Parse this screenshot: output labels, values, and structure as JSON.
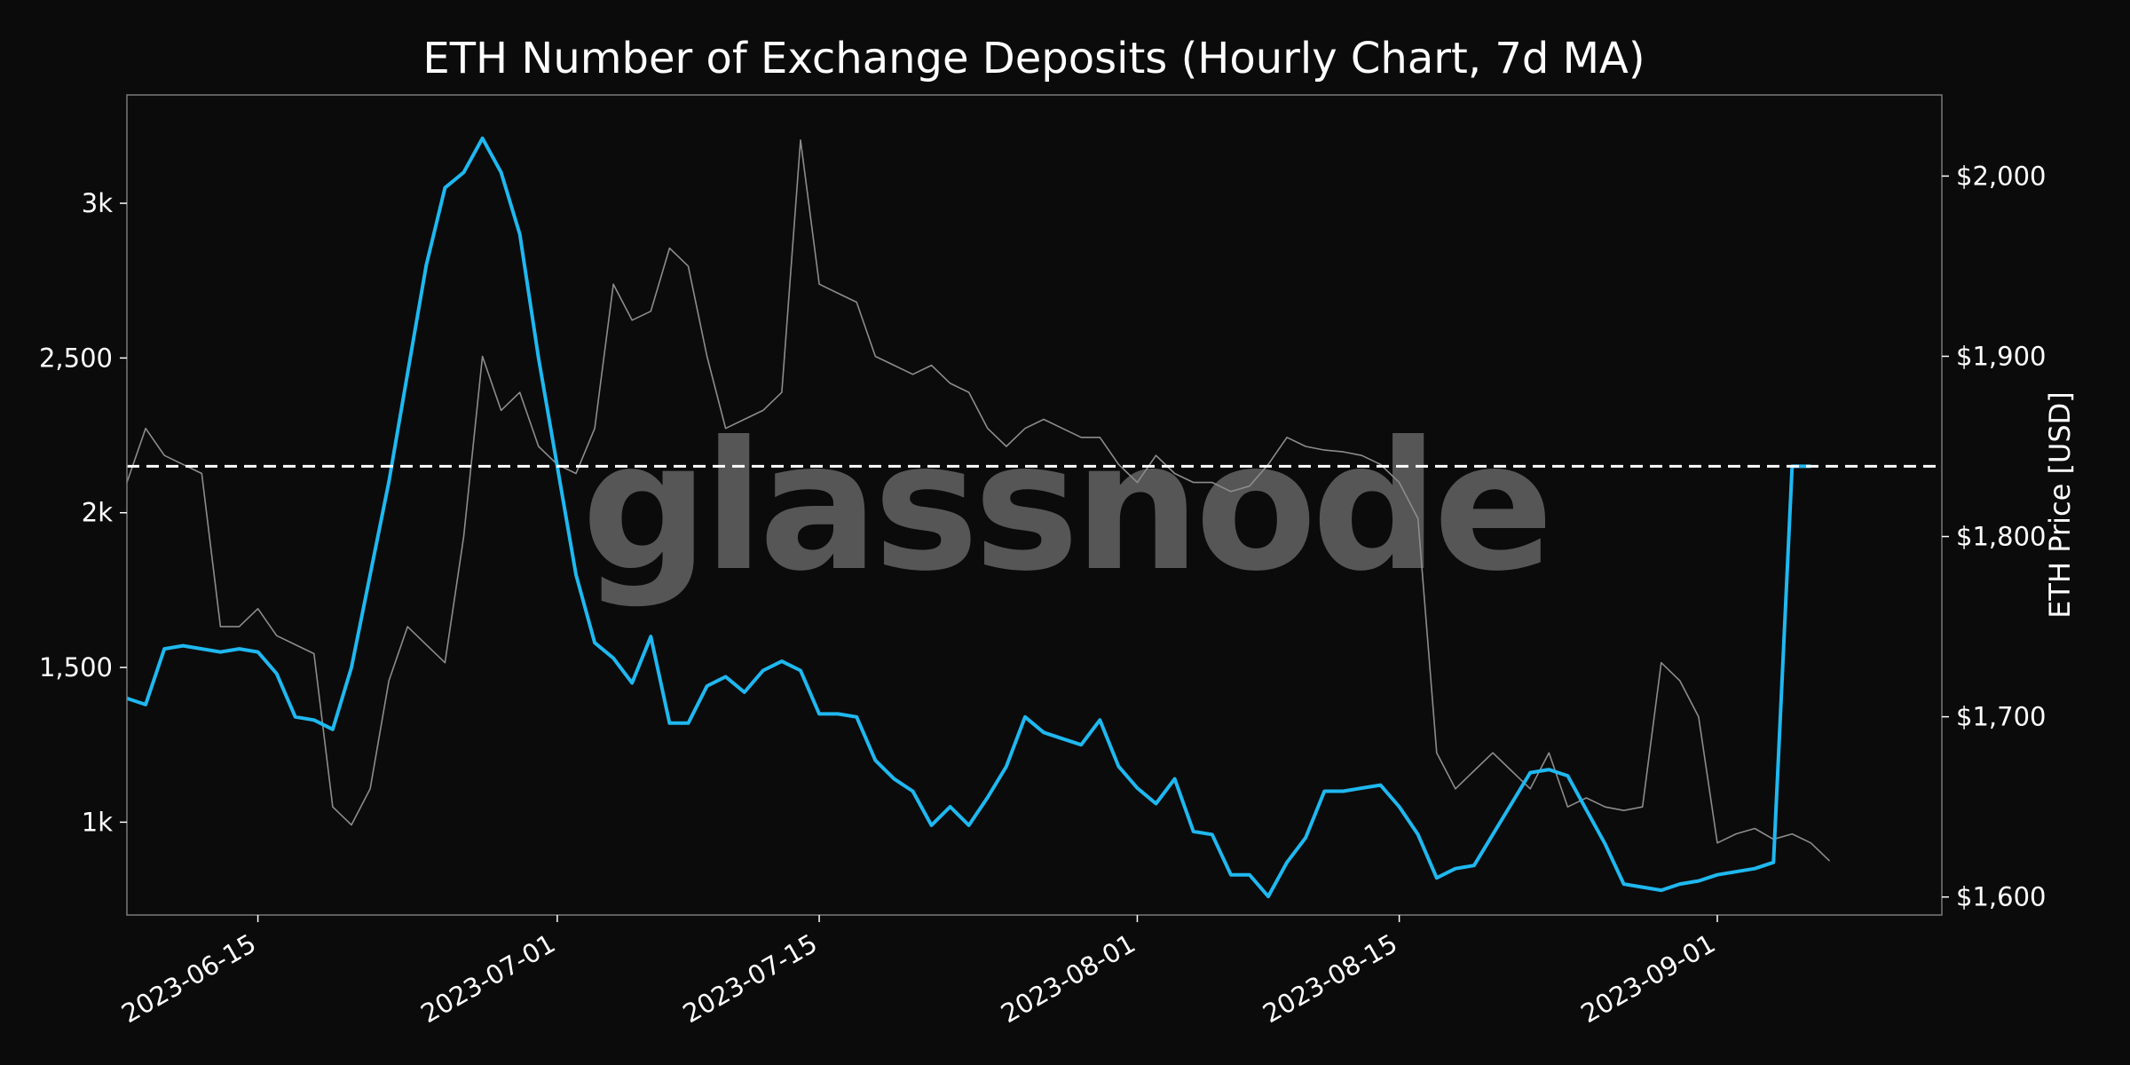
{
  "chart_data": {
    "type": "line",
    "title": "ETH Number of Exchange Deposits (Hourly Chart, 7d MA)",
    "watermark": "glassnode",
    "xlabel": "",
    "ylabel_left": "",
    "ylabel_right": "ETH Price [USD]",
    "x_ticks": [
      "2023-06-15",
      "2023-07-01",
      "2023-07-15",
      "2023-08-01",
      "2023-08-15",
      "2023-09-01"
    ],
    "y_left_ticks": [
      {
        "value": 1000,
        "label": "1k"
      },
      {
        "value": 1500,
        "label": "1,500"
      },
      {
        "value": 2000,
        "label": "2k"
      },
      {
        "value": 2500,
        "label": "2,500"
      },
      {
        "value": 3000,
        "label": "3k"
      }
    ],
    "y_right_ticks": [
      {
        "value": 1600,
        "label": "$1,600"
      },
      {
        "value": 1700,
        "label": "$1,700"
      },
      {
        "value": 1800,
        "label": "$1,800"
      },
      {
        "value": 1900,
        "label": "$1,900"
      },
      {
        "value": 2000,
        "label": "$2,000"
      }
    ],
    "xlim": [
      "2023-06-08",
      "2023-09-13"
    ],
    "ylim_left": [
      700,
      3350
    ],
    "ylim_right": [
      1590,
      2045
    ],
    "grid": false,
    "reference_line": {
      "axis": "left",
      "value": 2150,
      "style": "dashed",
      "color": "#ffffff"
    },
    "colors": {
      "background": "#0b0b0b",
      "deposits": "#1fb8f0",
      "price": "#8c8c8c",
      "frame": "#7a7a7a"
    },
    "series": [
      {
        "axis": "left",
        "color": "#1fb8f0",
        "points": [
          [
            "2023-06-08",
            1400
          ],
          [
            "2023-06-09",
            1380
          ],
          [
            "2023-06-10",
            1560
          ],
          [
            "2023-06-11",
            1570
          ],
          [
            "2023-06-12",
            1560
          ],
          [
            "2023-06-13",
            1550
          ],
          [
            "2023-06-14",
            1560
          ],
          [
            "2023-06-15",
            1550
          ],
          [
            "2023-06-16",
            1480
          ],
          [
            "2023-06-17",
            1340
          ],
          [
            "2023-06-18",
            1330
          ],
          [
            "2023-06-19",
            1300
          ],
          [
            "2023-06-20",
            1500
          ],
          [
            "2023-06-21",
            1800
          ],
          [
            "2023-06-22",
            2100
          ],
          [
            "2023-06-23",
            2450
          ],
          [
            "2023-06-24",
            2800
          ],
          [
            "2023-06-25",
            3050
          ],
          [
            "2023-06-26",
            3100
          ],
          [
            "2023-06-27",
            3210
          ],
          [
            "2023-06-28",
            3100
          ],
          [
            "2023-06-29",
            2900
          ],
          [
            "2023-06-30",
            2500
          ],
          [
            "2023-07-01",
            2150
          ],
          [
            "2023-07-02",
            1800
          ],
          [
            "2023-07-03",
            1580
          ],
          [
            "2023-07-04",
            1530
          ],
          [
            "2023-07-05",
            1450
          ],
          [
            "2023-07-06",
            1600
          ],
          [
            "2023-07-07",
            1320
          ],
          [
            "2023-07-08",
            1320
          ],
          [
            "2023-07-09",
            1440
          ],
          [
            "2023-07-10",
            1470
          ],
          [
            "2023-07-11",
            1420
          ],
          [
            "2023-07-12",
            1490
          ],
          [
            "2023-07-13",
            1520
          ],
          [
            "2023-07-14",
            1490
          ],
          [
            "2023-07-15",
            1350
          ],
          [
            "2023-07-16",
            1350
          ],
          [
            "2023-07-17",
            1340
          ],
          [
            "2023-07-18",
            1200
          ],
          [
            "2023-07-19",
            1140
          ],
          [
            "2023-07-20",
            1100
          ],
          [
            "2023-07-21",
            990
          ],
          [
            "2023-07-22",
            1050
          ],
          [
            "2023-07-23",
            990
          ],
          [
            "2023-07-24",
            1080
          ],
          [
            "2023-07-25",
            1180
          ],
          [
            "2023-07-26",
            1340
          ],
          [
            "2023-07-27",
            1290
          ],
          [
            "2023-07-28",
            1270
          ],
          [
            "2023-07-29",
            1250
          ],
          [
            "2023-07-30",
            1330
          ],
          [
            "2023-07-31",
            1180
          ],
          [
            "2023-08-01",
            1110
          ],
          [
            "2023-08-02",
            1060
          ],
          [
            "2023-08-03",
            1140
          ],
          [
            "2023-08-04",
            970
          ],
          [
            "2023-08-05",
            960
          ],
          [
            "2023-08-06",
            830
          ],
          [
            "2023-08-07",
            830
          ],
          [
            "2023-08-08",
            760
          ],
          [
            "2023-08-09",
            870
          ],
          [
            "2023-08-10",
            950
          ],
          [
            "2023-08-11",
            1100
          ],
          [
            "2023-08-12",
            1100
          ],
          [
            "2023-08-13",
            1110
          ],
          [
            "2023-08-14",
            1120
          ],
          [
            "2023-08-15",
            1050
          ],
          [
            "2023-08-16",
            960
          ],
          [
            "2023-08-17",
            820
          ],
          [
            "2023-08-18",
            850
          ],
          [
            "2023-08-19",
            860
          ],
          [
            "2023-08-20",
            960
          ],
          [
            "2023-08-21",
            1060
          ],
          [
            "2023-08-22",
            1160
          ],
          [
            "2023-08-23",
            1170
          ],
          [
            "2023-08-24",
            1150
          ],
          [
            "2023-08-25",
            1040
          ],
          [
            "2023-08-26",
            930
          ],
          [
            "2023-08-27",
            800
          ],
          [
            "2023-08-28",
            790
          ],
          [
            "2023-08-29",
            780
          ],
          [
            "2023-08-30",
            800
          ],
          [
            "2023-08-31",
            810
          ],
          [
            "2023-09-01",
            830
          ],
          [
            "2023-09-02",
            840
          ],
          [
            "2023-09-03",
            850
          ],
          [
            "2023-09-04",
            870
          ],
          [
            "2023-09-05",
            2150
          ],
          [
            "2023-09-06",
            2150
          ]
        ]
      },
      {
        "axis": "right",
        "color": "#8c8c8c",
        "points": [
          [
            "2023-06-08",
            1830
          ],
          [
            "2023-06-09",
            1860
          ],
          [
            "2023-06-10",
            1845
          ],
          [
            "2023-06-11",
            1840
          ],
          [
            "2023-06-12",
            1835
          ],
          [
            "2023-06-13",
            1750
          ],
          [
            "2023-06-14",
            1750
          ],
          [
            "2023-06-15",
            1760
          ],
          [
            "2023-06-16",
            1745
          ],
          [
            "2023-06-17",
            1740
          ],
          [
            "2023-06-18",
            1735
          ],
          [
            "2023-06-19",
            1650
          ],
          [
            "2023-06-20",
            1640
          ],
          [
            "2023-06-21",
            1660
          ],
          [
            "2023-06-22",
            1720
          ],
          [
            "2023-06-23",
            1750
          ],
          [
            "2023-06-24",
            1740
          ],
          [
            "2023-06-25",
            1730
          ],
          [
            "2023-06-26",
            1800
          ],
          [
            "2023-06-27",
            1900
          ],
          [
            "2023-06-28",
            1870
          ],
          [
            "2023-06-29",
            1880
          ],
          [
            "2023-06-30",
            1850
          ],
          [
            "2023-07-01",
            1840
          ],
          [
            "2023-07-02",
            1835
          ],
          [
            "2023-07-03",
            1860
          ],
          [
            "2023-07-04",
            1940
          ],
          [
            "2023-07-05",
            1920
          ],
          [
            "2023-07-06",
            1925
          ],
          [
            "2023-07-07",
            1960
          ],
          [
            "2023-07-08",
            1950
          ],
          [
            "2023-07-09",
            1900
          ],
          [
            "2023-07-10",
            1860
          ],
          [
            "2023-07-11",
            1865
          ],
          [
            "2023-07-12",
            1870
          ],
          [
            "2023-07-13",
            1880
          ],
          [
            "2023-07-14",
            2020
          ],
          [
            "2023-07-15",
            1940
          ],
          [
            "2023-07-16",
            1935
          ],
          [
            "2023-07-17",
            1930
          ],
          [
            "2023-07-18",
            1900
          ],
          [
            "2023-07-19",
            1895
          ],
          [
            "2023-07-20",
            1890
          ],
          [
            "2023-07-21",
            1895
          ],
          [
            "2023-07-22",
            1885
          ],
          [
            "2023-07-23",
            1880
          ],
          [
            "2023-07-24",
            1860
          ],
          [
            "2023-07-25",
            1850
          ],
          [
            "2023-07-26",
            1860
          ],
          [
            "2023-07-27",
            1865
          ],
          [
            "2023-07-28",
            1860
          ],
          [
            "2023-07-29",
            1855
          ],
          [
            "2023-07-30",
            1855
          ],
          [
            "2023-07-31",
            1840
          ],
          [
            "2023-08-01",
            1830
          ],
          [
            "2023-08-02",
            1845
          ],
          [
            "2023-08-03",
            1835
          ],
          [
            "2023-08-04",
            1830
          ],
          [
            "2023-08-05",
            1830
          ],
          [
            "2023-08-06",
            1825
          ],
          [
            "2023-08-07",
            1828
          ],
          [
            "2023-08-08",
            1840
          ],
          [
            "2023-08-09",
            1855
          ],
          [
            "2023-08-10",
            1850
          ],
          [
            "2023-08-11",
            1848
          ],
          [
            "2023-08-12",
            1847
          ],
          [
            "2023-08-13",
            1845
          ],
          [
            "2023-08-14",
            1840
          ],
          [
            "2023-08-15",
            1830
          ],
          [
            "2023-08-16",
            1810
          ],
          [
            "2023-08-17",
            1680
          ],
          [
            "2023-08-18",
            1660
          ],
          [
            "2023-08-19",
            1670
          ],
          [
            "2023-08-20",
            1680
          ],
          [
            "2023-08-21",
            1670
          ],
          [
            "2023-08-22",
            1660
          ],
          [
            "2023-08-23",
            1680
          ],
          [
            "2023-08-24",
            1650
          ],
          [
            "2023-08-25",
            1655
          ],
          [
            "2023-08-26",
            1650
          ],
          [
            "2023-08-27",
            1648
          ],
          [
            "2023-08-28",
            1650
          ],
          [
            "2023-08-29",
            1730
          ],
          [
            "2023-08-30",
            1720
          ],
          [
            "2023-08-31",
            1700
          ],
          [
            "2023-09-01",
            1630
          ],
          [
            "2023-09-02",
            1635
          ],
          [
            "2023-09-03",
            1638
          ],
          [
            "2023-09-04",
            1632
          ],
          [
            "2023-09-05",
            1635
          ],
          [
            "2023-09-06",
            1630
          ],
          [
            "2023-09-07",
            1620
          ]
        ]
      }
    ]
  }
}
